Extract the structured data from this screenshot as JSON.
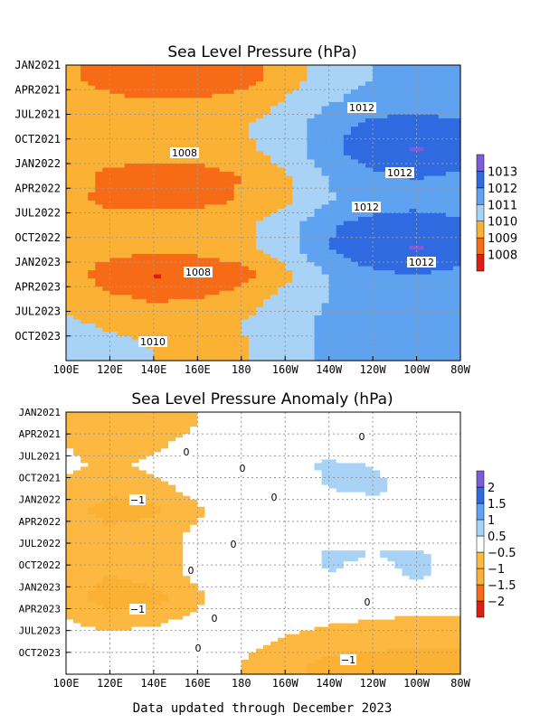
{
  "footer": "Data updated through December 2023",
  "x_ticks": [
    "100E",
    "120E",
    "140E",
    "160E",
    "180",
    "160W",
    "140W",
    "120W",
    "100W",
    "80W"
  ],
  "y_ticks": [
    "JAN2021",
    "APR2021",
    "JUL2021",
    "OCT2021",
    "JAN2022",
    "APR2022",
    "JUL2022",
    "OCT2022",
    "JAN2023",
    "APR2023",
    "JUL2023",
    "OCT2023"
  ],
  "chart_data": [
    {
      "type": "heatmap",
      "title": "Sea Level Pressure (hPa)",
      "xlabel": "",
      "ylabel": "",
      "x": [
        "100E",
        "120E",
        "140E",
        "160E",
        "180",
        "160W",
        "140W",
        "120W",
        "100W",
        "80W"
      ],
      "y": [
        "JAN2021",
        "APR2021",
        "JUL2021",
        "OCT2021",
        "JAN2022",
        "APR2022",
        "JUL2022",
        "OCT2022",
        "JAN2023",
        "APR2023",
        "JUL2023",
        "OCT2023"
      ],
      "colorbar": {
        "levels": [
          1008,
          1009,
          1010,
          1011,
          1012,
          1013
        ],
        "colors": [
          "#dd1f12",
          "#f76a16",
          "#fbb134",
          "#a9d3f6",
          "#5fa2ef",
          "#2f6ae1",
          "#7c5cd9"
        ]
      },
      "contour_labels": [
        "1012",
        "1008",
        "1012",
        "1012",
        "1008",
        "1012",
        "1010"
      ],
      "values": [
        [
          1009.2,
          1008.5,
          1008.0,
          1008.1,
          1008.6,
          1009.4,
          1010.6,
          1011.0,
          1011.1,
          1011.0
        ],
        [
          1009.5,
          1009.3,
          1009.1,
          1009.2,
          1009.4,
          1010.1,
          1010.9,
          1011.4,
          1011.6,
          1011.4
        ],
        [
          1009.7,
          1009.6,
          1009.8,
          1009.8,
          1009.9,
          1010.5,
          1011.7,
          1012.3,
          1012.5,
          1012.2
        ],
        [
          1009.8,
          1009.6,
          1009.5,
          1009.6,
          1009.8,
          1010.4,
          1011.8,
          1012.6,
          1013.1,
          1012.7
        ],
        [
          1009.6,
          1008.7,
          1008.3,
          1008.5,
          1009.0,
          1009.9,
          1011.1,
          1011.8,
          1012.1,
          1011.8
        ],
        [
          1009.2,
          1008.8,
          1008.6,
          1008.7,
          1009.1,
          1009.8,
          1010.9,
          1011.4,
          1011.6,
          1011.4
        ],
        [
          1009.3,
          1009.5,
          1009.6,
          1009.6,
          1009.8,
          1010.6,
          1011.9,
          1012.4,
          1012.6,
          1012.3
        ],
        [
          1009.5,
          1009.4,
          1009.2,
          1009.3,
          1009.7,
          1010.6,
          1012.0,
          1012.7,
          1013.1,
          1012.6
        ],
        [
          1009.5,
          1008.4,
          1007.9,
          1008.0,
          1008.5,
          1009.7,
          1011.1,
          1011.8,
          1012.0,
          1011.7
        ],
        [
          1009.8,
          1009.2,
          1008.9,
          1009.0,
          1009.5,
          1010.4,
          1011.0,
          1011.3,
          1011.4,
          1011.2
        ],
        [
          1010.1,
          1009.9,
          1009.8,
          1009.8,
          1010.0,
          1010.6,
          1011.2,
          1011.5,
          1011.6,
          1011.3
        ],
        [
          1010.2,
          1010.2,
          1010.0,
          1009.8,
          1009.9,
          1010.5,
          1011.2,
          1011.4,
          1011.4,
          1011.1
        ]
      ]
    },
    {
      "type": "heatmap",
      "title": "Sea Level Pressure Anomaly (hPa)",
      "xlabel": "",
      "ylabel": "",
      "x": [
        "100E",
        "120E",
        "140E",
        "160E",
        "180",
        "160W",
        "140W",
        "120W",
        "100W",
        "80W"
      ],
      "y": [
        "JAN2021",
        "APR2021",
        "JUL2021",
        "OCT2021",
        "JAN2022",
        "APR2022",
        "JUL2022",
        "OCT2022",
        "JAN2023",
        "APR2023",
        "JUL2023",
        "OCT2023"
      ],
      "colorbar": {
        "levels": [
          -2,
          -1.5,
          -1,
          -0.5,
          0.5,
          1,
          1.5,
          2
        ],
        "colors": [
          "#dd1f12",
          "#f76a16",
          "#fbb134",
          "#fcb840",
          "#ffffff",
          "#a9d3f6",
          "#5fa2ef",
          "#2f6ae1",
          "#7c5cd9"
        ]
      },
      "contour_labels": [
        "0",
        "0",
        "0",
        "0",
        "−1",
        "0",
        "0",
        "−1",
        "0",
        "−1",
        "0",
        "0"
      ],
      "values": [
        [
          -0.6,
          -0.8,
          -0.9,
          -0.5,
          -0.2,
          0.0,
          0.0,
          0.1,
          0.0,
          0.0
        ],
        [
          -0.5,
          -0.7,
          -0.6,
          -0.3,
          -0.1,
          0.1,
          0.3,
          0.2,
          0.1,
          0.1
        ],
        [
          -0.4,
          -0.6,
          -0.4,
          -0.1,
          0.1,
          0.3,
          0.6,
          0.5,
          0.4,
          0.3
        ],
        [
          -0.6,
          -0.9,
          -0.7,
          -0.3,
          0.0,
          0.2,
          0.5,
          0.6,
          0.3,
          0.2
        ],
        [
          -0.8,
          -1.2,
          -1.1,
          -0.6,
          -0.2,
          0.1,
          0.2,
          0.3,
          0.2,
          0.1
        ],
        [
          -0.7,
          -0.9,
          -0.8,
          -0.4,
          -0.2,
          0.0,
          0.2,
          0.3,
          0.2,
          0.1
        ],
        [
          -0.7,
          -0.8,
          -0.7,
          -0.4,
          -0.1,
          0.2,
          0.6,
          0.5,
          0.6,
          0.3
        ],
        [
          -0.8,
          -1.0,
          -0.8,
          -0.4,
          -0.1,
          0.2,
          0.5,
          0.3,
          0.6,
          0.2
        ],
        [
          -0.7,
          -1.3,
          -1.2,
          -0.6,
          -0.2,
          0.0,
          0.1,
          0.1,
          0.0,
          -0.1
        ],
        [
          -0.5,
          -0.7,
          -0.6,
          -0.4,
          -0.2,
          -0.2,
          -0.4,
          -0.5,
          -0.6,
          -0.6
        ],
        [
          -0.3,
          -0.3,
          -0.3,
          -0.2,
          -0.3,
          -0.6,
          -0.8,
          -0.9,
          -0.9,
          -0.9
        ],
        [
          -0.2,
          -0.1,
          0.1,
          -0.2,
          -0.5,
          -0.9,
          -1.1,
          -1.1,
          -1.2,
          -1.3
        ]
      ]
    }
  ]
}
